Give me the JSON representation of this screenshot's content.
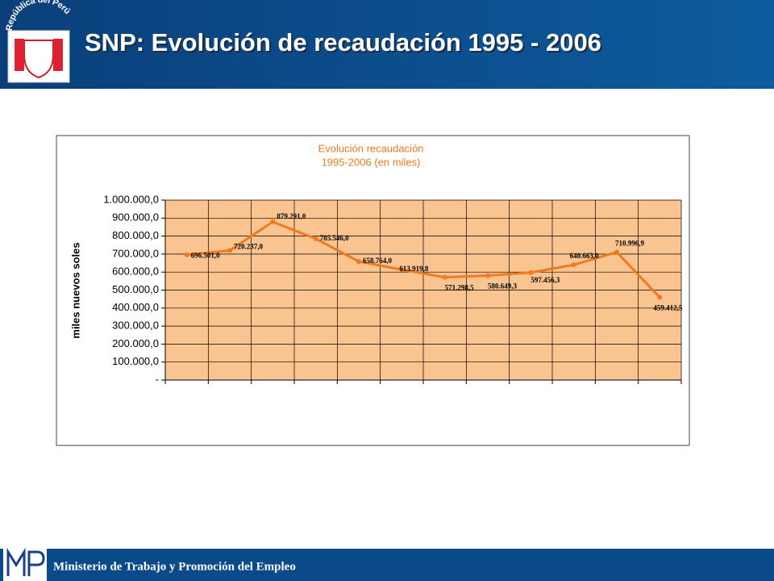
{
  "header": {
    "title": "SNP: Evolución de recaudación 1995 - 2006",
    "emblem_text": "República del Perú"
  },
  "footer": {
    "text": "Ministerio de Trabajo y Promoción del Empleo"
  },
  "chart_data": {
    "type": "line",
    "title": "Evolución recaudación",
    "subtitle": "1995-2006 (en miles)",
    "y_label": "miles nuevos soles",
    "categories": [
      null,
      null,
      null,
      null,
      null,
      null,
      null,
      null,
      null,
      null,
      null,
      null
    ],
    "series": [
      {
        "name": null,
        "color": "#f07a1e",
        "values": [
          696501.0,
          720237.0,
          879291.0,
          785546.0,
          658764.0,
          613919.8,
          571298.5,
          580649.3,
          597456.3,
          640663.0,
          710996.9,
          459412.5
        ],
        "value_labels": [
          "696.501,0",
          "720.237,0",
          "879.291,0",
          "785.546,0",
          "658.764,0",
          "613.919,8",
          "571.298,5",
          "580.649,3",
          "597.456,3",
          "640.663,0",
          "710.996,9",
          "459.412,5"
        ]
      }
    ],
    "ylim": [
      0,
      1000000
    ],
    "yticks": [
      {
        "value": 0,
        "label": "-"
      },
      {
        "value": 100000,
        "label": "100.000,0"
      },
      {
        "value": 200000,
        "label": "200.000,0"
      },
      {
        "value": 300000,
        "label": "300.000,0"
      },
      {
        "value": 400000,
        "label": "400.000,0"
      },
      {
        "value": 500000,
        "label": "500.000,0"
      },
      {
        "value": 600000,
        "label": "600.000,0"
      },
      {
        "value": 700000,
        "label": "700.000,0"
      },
      {
        "value": 800000,
        "label": "800.000,0"
      },
      {
        "value": 900000,
        "label": "900.000,0"
      },
      {
        "value": 1000000,
        "label": "1.000.000,0"
      }
    ],
    "grid": true,
    "plot_color": "#fac491"
  }
}
